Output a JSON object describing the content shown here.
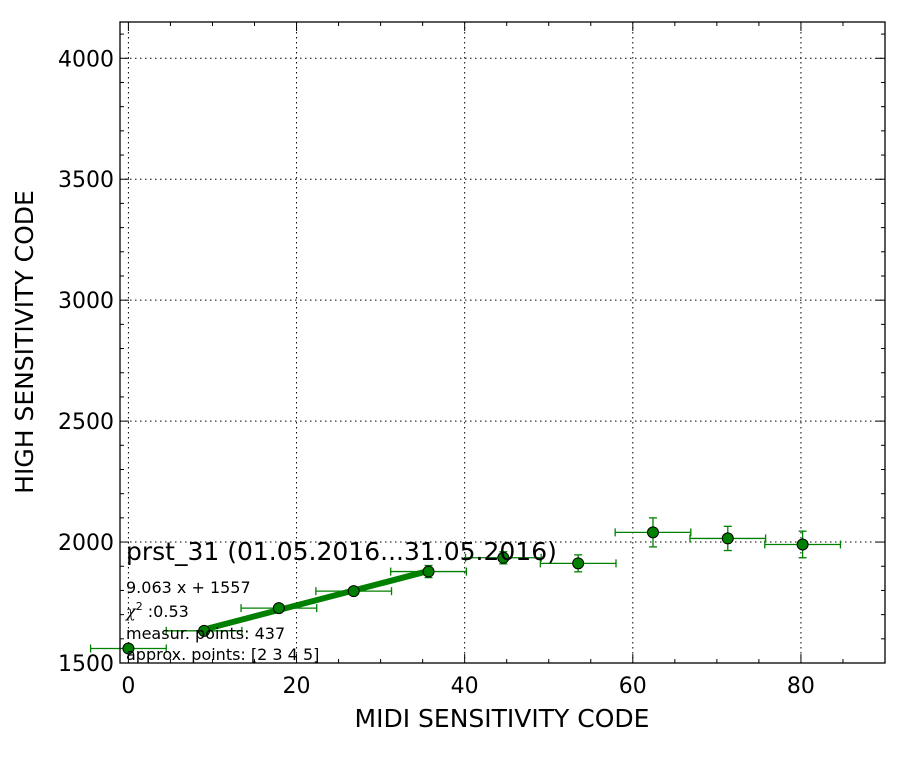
{
  "chart_data": {
    "type": "scatter",
    "xlabel": "MIDI SENSITIVITY CODE",
    "ylabel": "HIGH SENSITIVITY CODE",
    "xlim": [
      -1,
      90
    ],
    "ylim": [
      1500,
      4150
    ],
    "x_ticks": [
      0,
      20,
      40,
      60,
      80
    ],
    "y_ticks": [
      1500,
      2000,
      2500,
      3000,
      3500,
      4000
    ],
    "grid": true,
    "color": "#008000",
    "points": [
      {
        "x": 0,
        "y": 1560,
        "xerr": 4.5,
        "yerr": 10
      },
      {
        "x": 9,
        "y": 1633,
        "xerr": 4.5,
        "yerr": 15
      },
      {
        "x": 17.9,
        "y": 1727,
        "xerr": 4.5,
        "yerr": 15
      },
      {
        "x": 26.8,
        "y": 1797,
        "xerr": 4.5,
        "yerr": 15
      },
      {
        "x": 35.7,
        "y": 1878,
        "xerr": 4.5,
        "yerr": 25
      },
      {
        "x": 44.6,
        "y": 1935,
        "xerr": 4.5,
        "yerr": 25
      },
      {
        "x": 53.5,
        "y": 1912,
        "xerr": 4.5,
        "yerr": 35
      },
      {
        "x": 62.4,
        "y": 2040,
        "xerr": 4.5,
        "yerr": 60
      },
      {
        "x": 71.3,
        "y": 2015,
        "xerr": 4.5,
        "yerr": 50
      },
      {
        "x": 80.2,
        "y": 1990,
        "xerr": 4.5,
        "yerr": 55
      }
    ],
    "fit": {
      "slope": 9.063,
      "intercept": 1557,
      "x_range": [
        9,
        35.7
      ]
    },
    "annotation": {
      "title": "prst_31 (01.05.2016...31.05.2016)",
      "fit_text": "9.063 x + 1557",
      "chi_symbol": "χ",
      "chi_exp": "2",
      "chi_value": " :0.53",
      "measur": "measur. points: 437",
      "approx": "approx. points: [2 3 4 5]"
    }
  }
}
